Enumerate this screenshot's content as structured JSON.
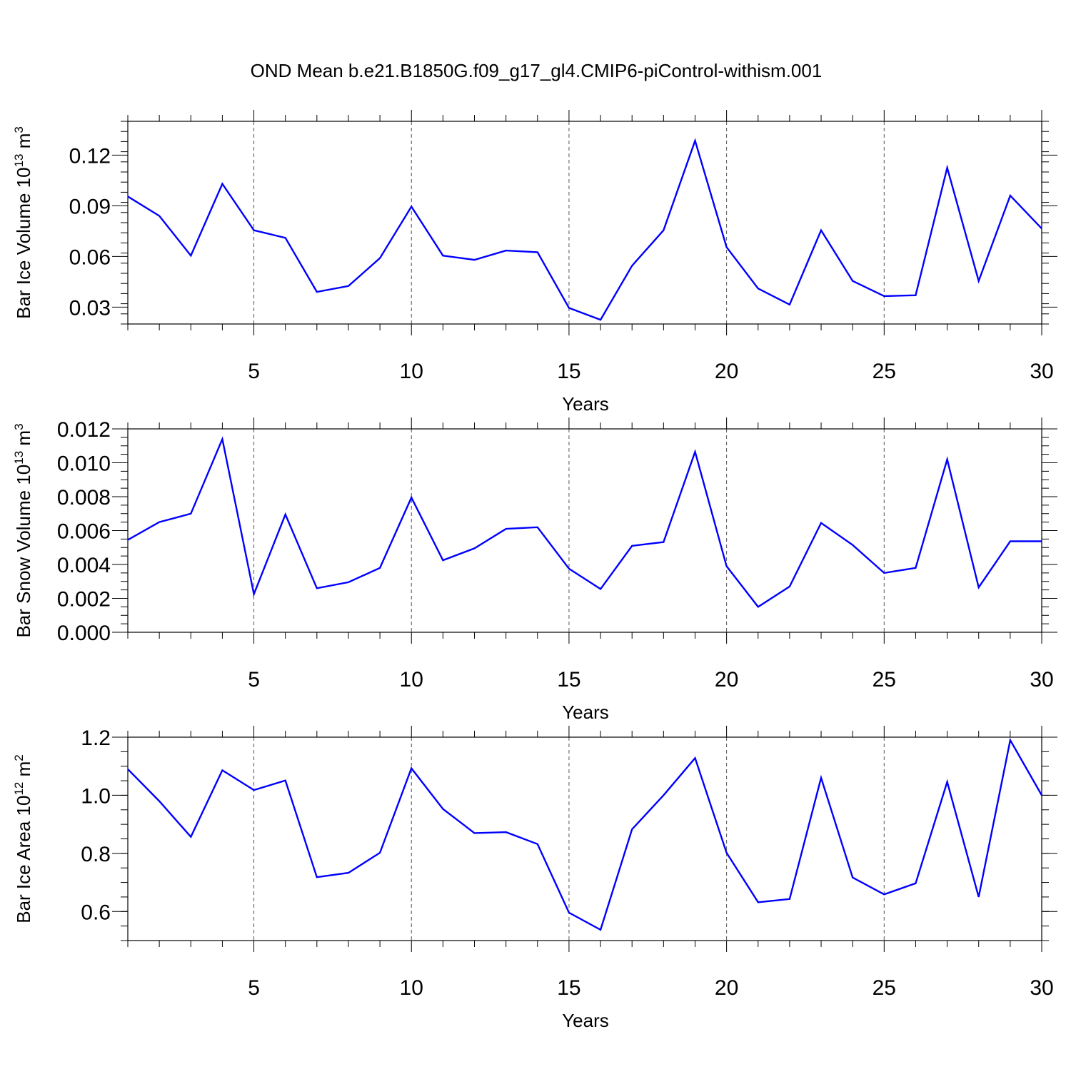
{
  "title": "OND Mean b.e21.B1850G.f09_g17_gl4.CMIP6-piControl-withism.001",
  "line_color": "#0000ff",
  "chart_data": [
    {
      "type": "line",
      "ylabel": "Bar Ice Volume 10",
      "ylabel_exp": "13",
      "ylabel_unit": " m",
      "ylabel_unit_exp": "3",
      "xlabel": "Years",
      "xlim": [
        1,
        30
      ],
      "ylim": [
        0.02,
        0.14
      ],
      "yticks": [
        0.03,
        0.06,
        0.09,
        0.12
      ],
      "ytick_labels": [
        "0.03",
        "0.06",
        "0.09",
        "0.12"
      ],
      "yminor": 0.006,
      "xticks": [
        5,
        10,
        15,
        20,
        25,
        30
      ],
      "xtick_labels": [
        "5",
        "10",
        "15",
        "20",
        "25",
        "30"
      ],
      "grid": "vertical dashed at major x ticks",
      "x": [
        1,
        2,
        3,
        4,
        5,
        6,
        7,
        8,
        9,
        10,
        11,
        12,
        13,
        14,
        15,
        16,
        17,
        18,
        19,
        20,
        21,
        22,
        23,
        24,
        25,
        26,
        27,
        28,
        29,
        30
      ],
      "values": [
        0.0955,
        0.084,
        0.0605,
        0.103,
        0.0755,
        0.071,
        0.039,
        0.0425,
        0.059,
        0.0895,
        0.0605,
        0.058,
        0.0635,
        0.0625,
        0.0295,
        0.0225,
        0.0545,
        0.0755,
        0.1285,
        0.0655,
        0.041,
        0.0315,
        0.0755,
        0.0455,
        0.0365,
        0.037,
        0.1125,
        0.0455,
        0.096,
        0.0765
      ]
    },
    {
      "type": "line",
      "ylabel": "Bar Snow Volume 10",
      "ylabel_exp": "13",
      "ylabel_unit": " m",
      "ylabel_unit_exp": "3",
      "xlabel": "Years",
      "xlim": [
        1,
        30
      ],
      "ylim": [
        0.0,
        0.012
      ],
      "yticks": [
        0.0,
        0.002,
        0.004,
        0.006,
        0.008,
        0.01,
        0.012
      ],
      "ytick_labels": [
        "0.000",
        "0.002",
        "0.004",
        "0.006",
        "0.008",
        "0.010",
        "0.012"
      ],
      "yminor": 0.0005,
      "xticks": [
        5,
        10,
        15,
        20,
        25,
        30
      ],
      "xtick_labels": [
        "5",
        "10",
        "15",
        "20",
        "25",
        "30"
      ],
      "grid": "vertical dashed at major x ticks",
      "x": [
        1,
        2,
        3,
        4,
        5,
        6,
        7,
        8,
        9,
        10,
        11,
        12,
        13,
        14,
        15,
        16,
        17,
        18,
        19,
        20,
        21,
        22,
        23,
        24,
        25,
        26,
        27,
        28,
        29,
        30
      ],
      "values": [
        0.00545,
        0.0065,
        0.007,
        0.0114,
        0.00225,
        0.00695,
        0.0026,
        0.00295,
        0.0038,
        0.00795,
        0.00425,
        0.00495,
        0.0061,
        0.0062,
        0.00375,
        0.00255,
        0.0051,
        0.00532,
        0.01065,
        0.0039,
        0.0015,
        0.0027,
        0.00645,
        0.00515,
        0.0035,
        0.0038,
        0.0102,
        0.00265,
        0.00537,
        0.00537
      ]
    },
    {
      "type": "line",
      "ylabel": "Bar Ice Area 10",
      "ylabel_exp": "12",
      "ylabel_unit": " m",
      "ylabel_unit_exp": "2",
      "xlabel": "Years",
      "xlim": [
        1,
        30
      ],
      "ylim": [
        0.5,
        1.2
      ],
      "yticks": [
        0.6,
        0.8,
        1.0,
        1.2
      ],
      "ytick_labels": [
        "0.6",
        "0.8",
        "1.0",
        "1.2"
      ],
      "yminor": 0.05,
      "xticks": [
        5,
        10,
        15,
        20,
        25,
        30
      ],
      "xtick_labels": [
        "5",
        "10",
        "15",
        "20",
        "25",
        "30"
      ],
      "grid": "vertical dashed at major x ticks",
      "x": [
        1,
        2,
        3,
        4,
        5,
        6,
        7,
        8,
        9,
        10,
        11,
        12,
        13,
        14,
        15,
        16,
        17,
        18,
        19,
        20,
        21,
        22,
        23,
        24,
        25,
        26,
        27,
        28,
        29,
        30
      ],
      "values": [
        1.09,
        0.98,
        0.857,
        1.086,
        1.018,
        1.051,
        0.718,
        0.733,
        0.802,
        1.093,
        0.953,
        0.87,
        0.873,
        0.832,
        0.596,
        0.537,
        0.883,
        1.0,
        1.128,
        0.802,
        0.632,
        0.643,
        1.06,
        0.717,
        0.659,
        0.697,
        1.046,
        0.65,
        1.19,
        1.0
      ]
    }
  ]
}
